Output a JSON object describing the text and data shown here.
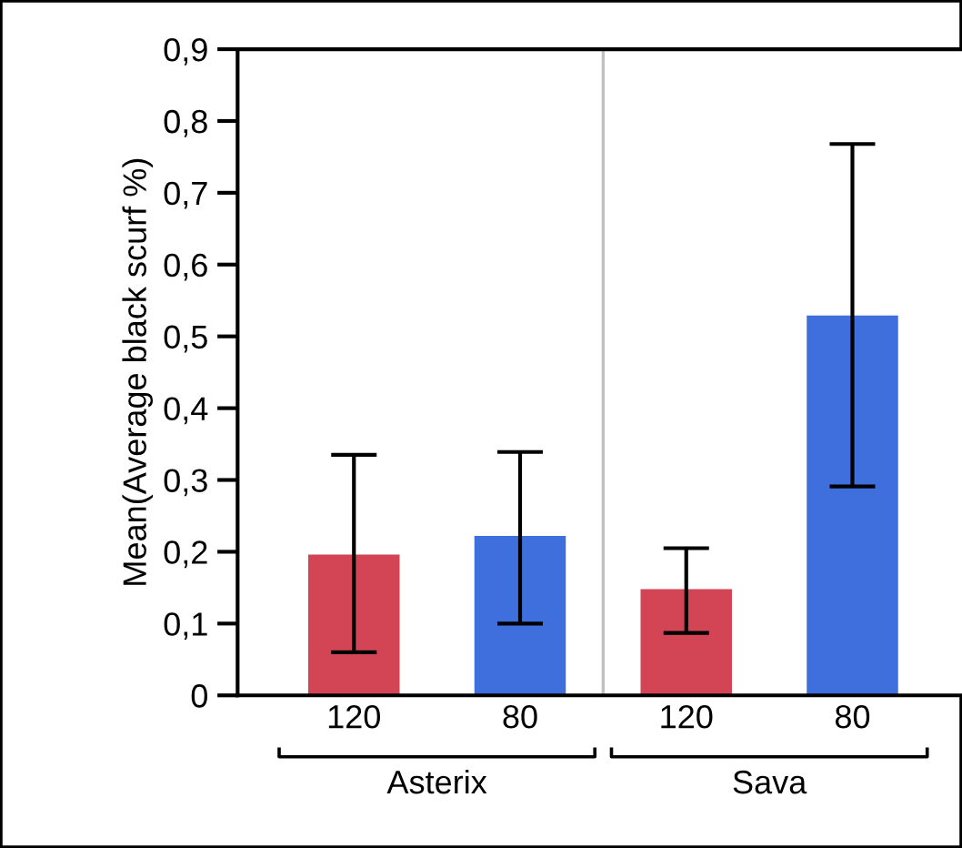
{
  "chart_data": {
    "type": "bar",
    "ylabel": "Mean(Average black scurf %)",
    "categories": [
      "120",
      "80",
      "120",
      "80"
    ],
    "values": [
      0.196,
      0.222,
      0.148,
      0.529
    ],
    "colors": [
      "#d34555",
      "#3f6fdc",
      "#d34555",
      "#3f6fdc"
    ],
    "errors": [
      [
        0.06,
        0.335
      ],
      [
        0.1,
        0.339
      ],
      [
        0.087,
        0.205
      ],
      [
        0.291,
        0.768
      ]
    ],
    "annotations": [
      "Asterix",
      "Sava"
    ],
    "ylim": [
      0,
      0.9
    ],
    "yticks": [
      {
        "value": 0,
        "label": "0"
      },
      {
        "value": 0.1,
        "label": "0,1"
      },
      {
        "value": 0.2,
        "label": "0,2"
      },
      {
        "value": 0.3,
        "label": "0,3"
      },
      {
        "value": 0.4,
        "label": "0,4"
      },
      {
        "value": 0.5,
        "label": "0,5"
      },
      {
        "value": 0.6,
        "label": "0,6"
      },
      {
        "value": 0.7,
        "label": "0,7"
      },
      {
        "value": 0.8,
        "label": "0,8"
      },
      {
        "value": 0.9,
        "label": "0,9"
      }
    ],
    "grid": false,
    "legend": false
  }
}
